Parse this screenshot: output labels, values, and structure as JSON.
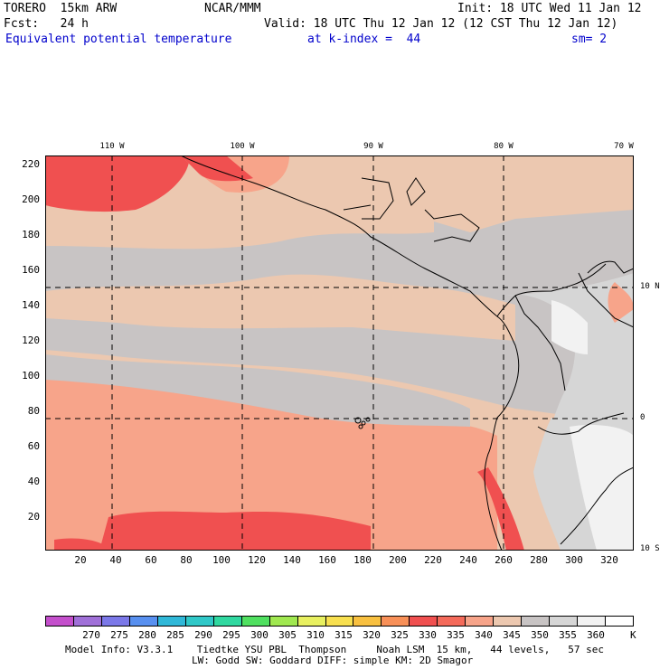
{
  "header": {
    "model": "TORERO  15km ARW",
    "center": "NCAR/MMM",
    "init": "Init: 18 UTC Wed 11 Jan 12",
    "fcst_label": "Fcst:   24 h",
    "valid": "Valid: 18 UTC Thu 12 Jan 12 (12 CST Thu 12 Jan 12)",
    "field": "Equivalent potential temperature",
    "level": "at k-index =  44",
    "smooth": "sm= 2"
  },
  "map": {
    "x_ticks": [
      "20",
      "40",
      "60",
      "80",
      "100",
      "120",
      "140",
      "160",
      "180",
      "200",
      "220",
      "240",
      "260",
      "280",
      "300",
      "320"
    ],
    "y_ticks": [
      "20",
      "40",
      "60",
      "80",
      "100",
      "120",
      "140",
      "160",
      "180",
      "200",
      "220"
    ],
    "lon_labels": [
      "110 W",
      "100 W",
      "90 W",
      "80 W",
      "70 W"
    ],
    "lat_labels": [
      "10 N",
      "0",
      "10 S"
    ],
    "colors": {
      "c270": "#c44fcc",
      "c275": "#a070d8",
      "c280": "#7b78e8",
      "c285": "#5890f0",
      "c290": "#30c8c8",
      "c295": "#30d8a0",
      "c300": "#50e060",
      "c305": "#a0e850",
      "c310": "#e8f060",
      "c315": "#f8e050",
      "c320": "#f8c040",
      "c325": "#f89058",
      "c330": "#f05050",
      "c335": "#f46a5a",
      "c340": "#f7a48a",
      "c345": "#ecc8b0",
      "c350": "#c8c4c4",
      "c355": "#d6d6d6",
      "c360": "#f2f2f2"
    }
  },
  "colorbar": {
    "labels": [
      "270",
      "275",
      "280",
      "285",
      "290",
      "295",
      "300",
      "305",
      "310",
      "315",
      "320",
      "325",
      "330",
      "335",
      "340",
      "345",
      "350",
      "355",
      "360"
    ],
    "unit": "K",
    "colors": [
      "#c44fcc",
      "#a070d8",
      "#7b78e8",
      "#5890f0",
      "#30b8d8",
      "#30c8c8",
      "#30d8a0",
      "#50e060",
      "#a0e850",
      "#e8f060",
      "#f8e050",
      "#f8c040",
      "#f89058",
      "#f05050",
      "#f46a5a",
      "#f7a48a",
      "#ecc8b0",
      "#c8c4c4",
      "#d6d6d6",
      "#f2f2f2",
      "#ffffff"
    ]
  },
  "footer": {
    "line1": "Model Info: V3.3.1    Tiedtke YSU PBL  Thompson     Noah LSM  15 km,   44 levels,   57 sec",
    "line2": "LW: Godd SW: Goddard DIFF: simple KM: 2D Smagor"
  }
}
